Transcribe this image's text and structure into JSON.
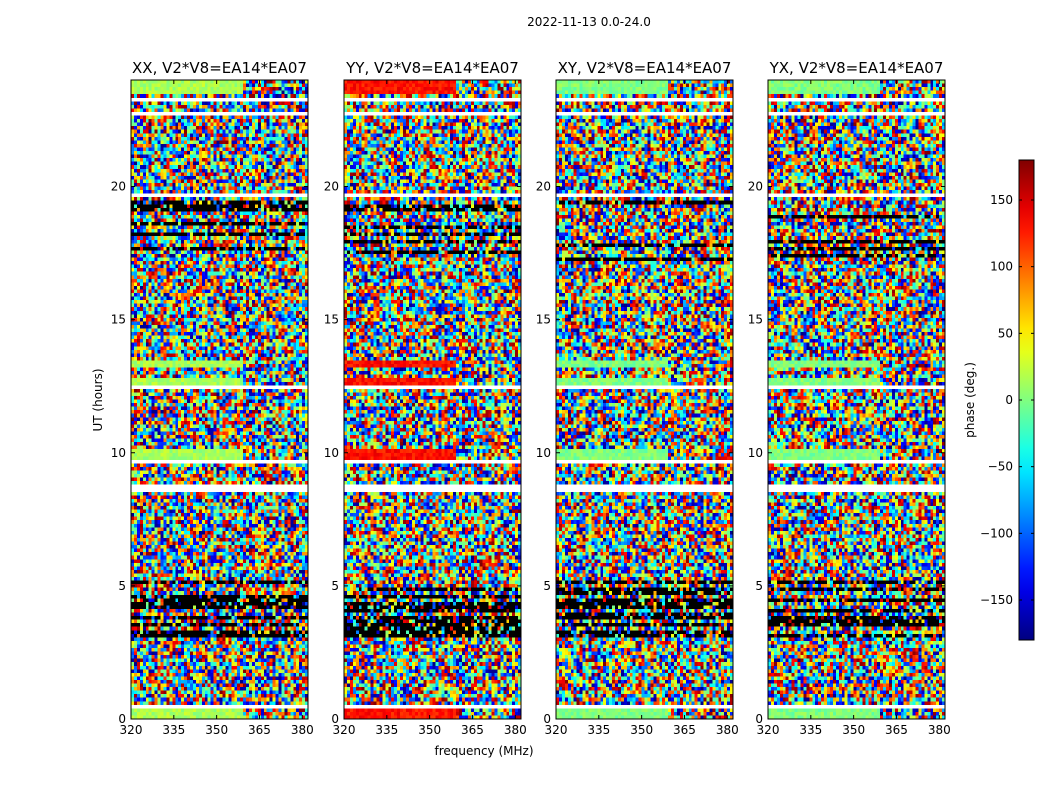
{
  "chart_data": {
    "type": "heatmap",
    "suptitle": "2022-11-13 0.0-24.0",
    "xlabel": "frequency (MHz)",
    "ylabel": "UT (hours)",
    "xlim": [
      320,
      382
    ],
    "ylim": [
      0,
      24
    ],
    "xticks": [
      320,
      335,
      350,
      365,
      380
    ],
    "yticks": [
      0,
      5,
      10,
      15,
      20
    ],
    "panels": [
      {
        "title": "XX, V2*V8=EA14*EA07",
        "mean_phase": 15
      },
      {
        "title": "YY, V2*V8=EA14*EA07",
        "mean_phase": 130
      },
      {
        "title": "XY, V2*V8=EA14*EA07",
        "mean_phase": 0
      },
      {
        "title": "YX, V2*V8=EA14*EA07",
        "mean_phase": 0
      }
    ],
    "flagged_gaps_hours": [
      [
        0.45,
        0.55
      ],
      [
        8.55,
        8.75
      ],
      [
        9.55,
        9.7
      ],
      [
        12.45,
        12.6
      ],
      [
        19.6,
        19.7
      ],
      [
        22.7,
        22.85
      ],
      [
        23.2,
        23.3
      ]
    ],
    "bright_bands_hours": [
      [
        0.0,
        0.45
      ],
      [
        9.7,
        10.1
      ],
      [
        12.6,
        12.85
      ],
      [
        13.2,
        13.5
      ],
      [
        23.5,
        24.0
      ]
    ],
    "colorbar": {
      "label": "phase (deg.)",
      "range": [
        -180,
        180
      ],
      "ticks": [
        -150,
        -100,
        -50,
        0,
        50,
        100,
        150
      ],
      "ticklabels": [
        "−150",
        "−100",
        "−50",
        "0",
        "50",
        "100",
        "150"
      ],
      "cmap": "jet"
    }
  }
}
